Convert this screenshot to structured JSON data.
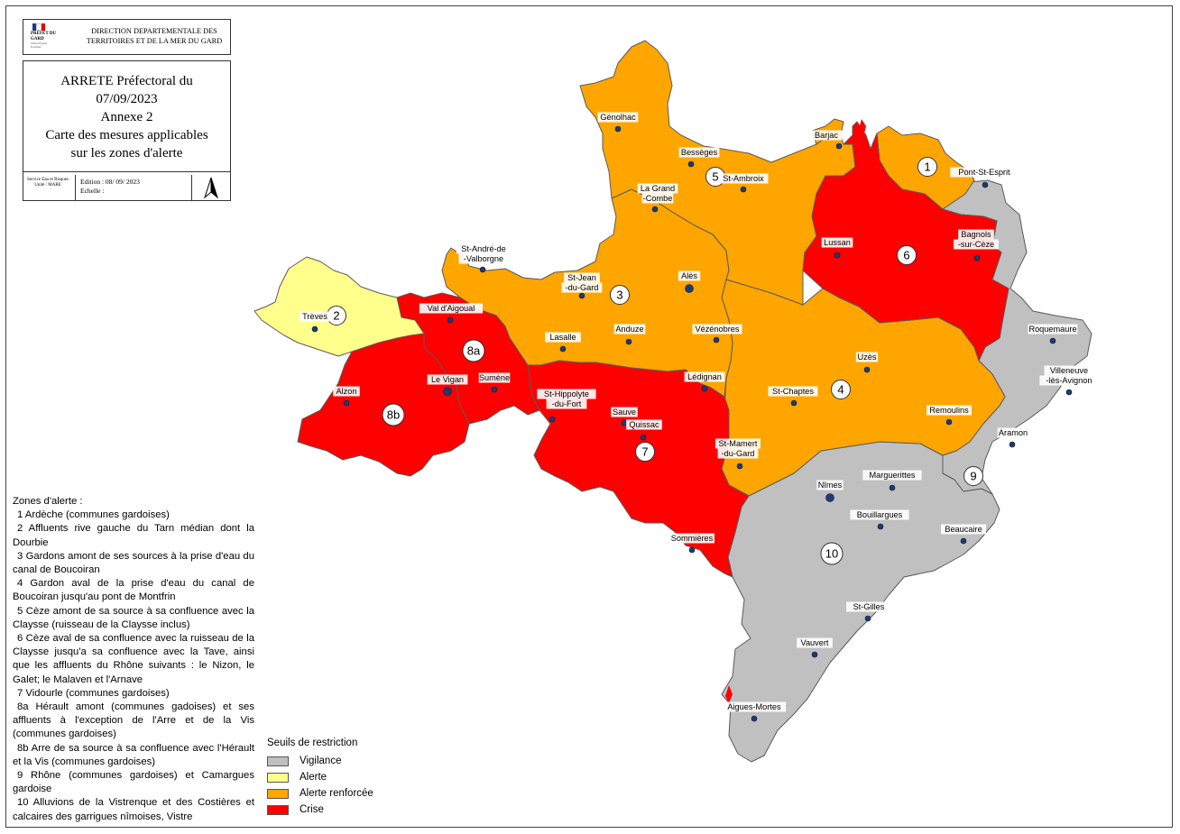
{
  "header": {
    "prefet_label": "PRÉFET DU GARD",
    "motto": "Liberté Égalité Fraternité",
    "direction": "DIRECTION DEPARTEMENTALE DES TERRITOIRES ET DE LA MER DU GARD"
  },
  "title": {
    "line1": "ARRETE Préfectoral du",
    "line2": "07/09/2023",
    "line3": "Annexe 2",
    "line4": "Carte des mesures applicables",
    "line5": "sur les zones d'alerte",
    "service": "Service Eau et Risques Unité : MARE",
    "edition": "Edition : 08/ 09/ 2023",
    "echelle": "Echelle :"
  },
  "colors": {
    "vigilance": "#c0c0c0",
    "alerte": "#ffff8c",
    "alerte_renforcee": "#ffa500",
    "crise": "#ff0000",
    "border": "#5a5a5a",
    "city_dot": "#1f3a6e"
  },
  "zones_text": {
    "heading": "Zones d'alerte :",
    "items": [
      "1 Ardèche (communes gardoises)",
      "2 Affluents rive gauche du Tarn médian dont la Dourbie",
      "3 Gardons amont de ses sources à la prise d'eau du canal de Boucoiran",
      "4 Gardon aval de la prise d'eau du canal de Boucoiran jusqu'au pont de Montfrin",
      "5 Cèze amont de sa source à sa confluence avec la Claysse (ruisseau de la Claysse inclus)",
      "6 Cèze aval de sa confluence avec la ruisseau de la Claysse jusqu'a sa confluence avec la Tave, ainsi que les affluents du Rhône suivants : le Nizon, le Galet; le Malaven et l'Arnave",
      "7 Vidourle (communes gardoises)",
      "8a Hérault amont (communes gadoises) et ses affluents à l'exception de l'Arre et de la Vis (communes gardoises)",
      "8b Arre de sa source à sa confluence avec l'Hérault et la Vis (communes gardoises)",
      "9 Rhône (communes gardoises) et Camargues gardoise",
      "10 Alluvions de la Vistrenque et des Costières et calcaires des garrigues nîmoises, Vistre"
    ]
  },
  "legend": {
    "title": "Seuils de restriction",
    "items": [
      {
        "label": "Vigilance",
        "color": "#c0c0c0"
      },
      {
        "label": "Alerte",
        "color": "#ffff8c"
      },
      {
        "label": "Alerte renforcée",
        "color": "#ffa500"
      },
      {
        "label": "Crise",
        "color": "#ff0000"
      }
    ]
  },
  "zones": [
    {
      "id": "1",
      "restriction": "Alerte renforcée"
    },
    {
      "id": "2",
      "restriction": "Alerte"
    },
    {
      "id": "3",
      "restriction": "Alerte renforcée"
    },
    {
      "id": "4",
      "restriction": "Alerte renforcée"
    },
    {
      "id": "5",
      "restriction": "Alerte renforcée"
    },
    {
      "id": "6",
      "restriction": "Crise"
    },
    {
      "id": "7",
      "restriction": "Crise"
    },
    {
      "id": "8a",
      "restriction": "Crise"
    },
    {
      "id": "8b",
      "restriction": "Crise"
    },
    {
      "id": "9",
      "restriction": "Vigilance"
    },
    {
      "id": "10",
      "restriction": "Vigilance"
    }
  ],
  "cities": [
    "Génolhac",
    "Barjac",
    "Bessèges",
    "St-Ambroix",
    "Pont-St-Esprit",
    "La Grand -Combe",
    "Lussan",
    "Bagnols -sur-Cèze",
    "St-André-de -Valborgne",
    "St-Jean -du-Gard",
    "Alès",
    "Trèves",
    "Val d'Aigoual",
    "Lasalle",
    "Anduze",
    "Vézénobres",
    "Roquemaure",
    "Uzès",
    "Villeneuve -lès-Avignon",
    "Lédignan",
    "Sumène",
    "Le Vigan",
    "Alzon",
    "St-Chaptes",
    "St-Hippolyte -du-Fort",
    "Sauve",
    "Quissac",
    "Remoulins",
    "Aramon",
    "St-Mamert -du-Gard",
    "Nîmes",
    "Marguerittes",
    "Bouillargues",
    "Beaucaire",
    "Sommières",
    "St-Gilles",
    "Vauvert",
    "Aigues-Mortes"
  ]
}
